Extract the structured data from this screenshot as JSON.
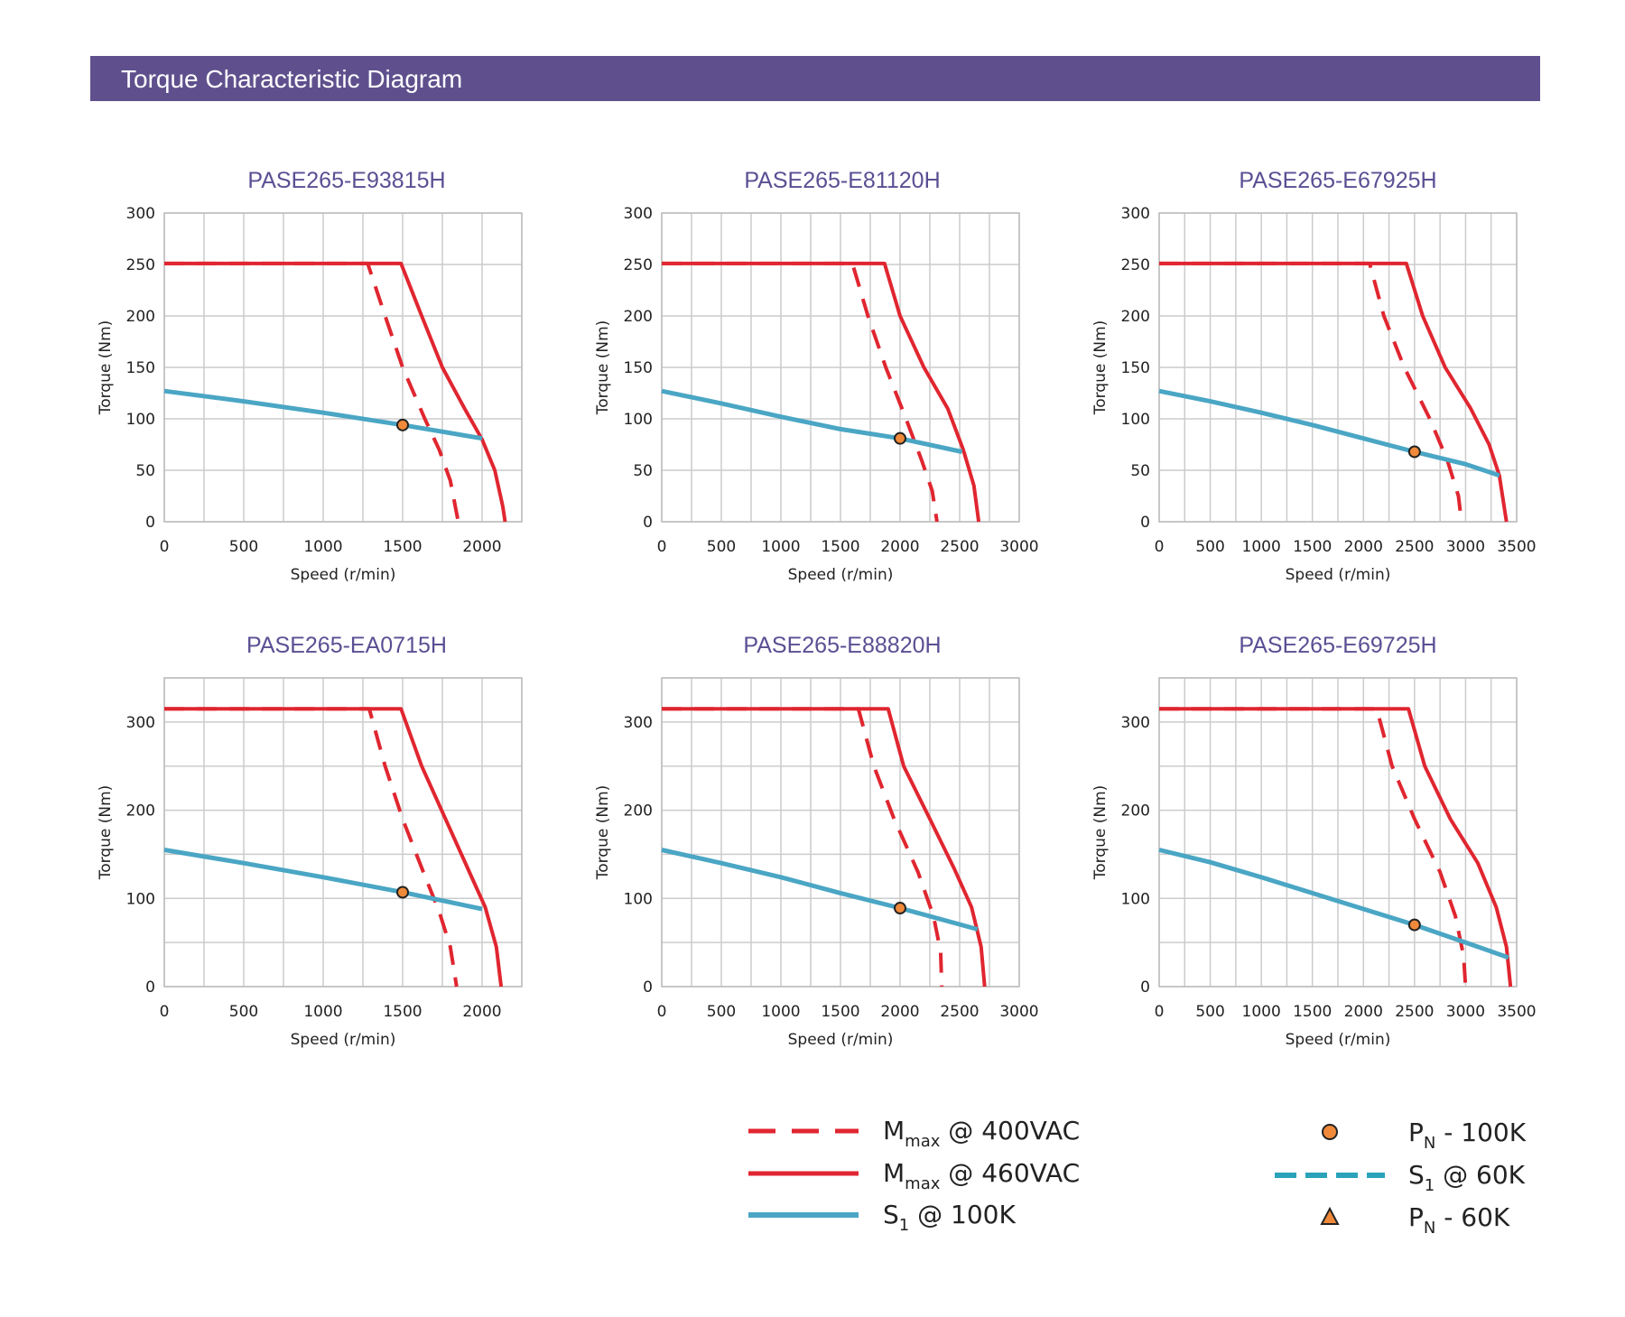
{
  "header": {
    "title": "Torque Characteristic Diagram"
  },
  "colors": {
    "header_bg": "#5f508d",
    "title": "#5a4f93",
    "mmax": "#e02630",
    "s1": "#4aa6c4",
    "grid": "#cccccc",
    "marker": "#f08a3a"
  },
  "chart_data": [
    {
      "type": "line",
      "title": "PASE265-E93815H",
      "xlabel": "Speed (r/min)",
      "ylabel": "Torque (Nm)",
      "xlim": [
        0,
        2250
      ],
      "ylim": [
        0,
        300
      ],
      "xticks": [
        0,
        500,
        1000,
        1500,
        2000
      ],
      "yticks": [
        0,
        50,
        100,
        150,
        200,
        250,
        300
      ],
      "series": [
        {
          "name": "Mmax @ 400VAC",
          "points": [
            [
              0,
              251
            ],
            [
              1280,
              251
            ],
            [
              1390,
              200
            ],
            [
              1500,
              150
            ],
            [
              1640,
              100
            ],
            [
              1730,
              70
            ],
            [
              1800,
              40
            ],
            [
              1850,
              0
            ]
          ]
        },
        {
          "name": "Mmax @ 460VAC",
          "points": [
            [
              0,
              251
            ],
            [
              1490,
              251
            ],
            [
              1620,
              200
            ],
            [
              1750,
              150
            ],
            [
              1890,
              110
            ],
            [
              2000,
              80
            ],
            [
              2080,
              50
            ],
            [
              2130,
              15
            ],
            [
              2145,
              0
            ]
          ]
        },
        {
          "name": "S1 @ 100K",
          "points": [
            [
              0,
              127
            ],
            [
              500,
              117
            ],
            [
              1000,
              106
            ],
            [
              1500,
              94
            ],
            [
              2000,
              81
            ]
          ]
        }
      ],
      "markers": [
        {
          "name": "PN - 100K",
          "x": 1500,
          "y": 94
        }
      ]
    },
    {
      "type": "line",
      "title": "PASE265-E81120H",
      "xlabel": "Speed (r/min)",
      "ylabel": "Torque (Nm)",
      "xlim": [
        0,
        3000
      ],
      "ylim": [
        0,
        300
      ],
      "xticks": [
        0,
        500,
        1000,
        1500,
        2000,
        2500,
        3000
      ],
      "yticks": [
        0,
        50,
        100,
        150,
        200,
        250,
        300
      ],
      "series": [
        {
          "name": "Mmax @ 400VAC",
          "points": [
            [
              0,
              251
            ],
            [
              1600,
              251
            ],
            [
              1730,
              200
            ],
            [
              1880,
              150
            ],
            [
              2050,
              100
            ],
            [
              2180,
              60
            ],
            [
              2270,
              30
            ],
            [
              2310,
              0
            ]
          ]
        },
        {
          "name": "Mmax @ 460VAC",
          "points": [
            [
              0,
              251
            ],
            [
              1870,
              251
            ],
            [
              2000,
              200
            ],
            [
              2200,
              150
            ],
            [
              2400,
              110
            ],
            [
              2530,
              70
            ],
            [
              2620,
              35
            ],
            [
              2660,
              0
            ]
          ]
        },
        {
          "name": "S1 @ 100K",
          "points": [
            [
              0,
              127
            ],
            [
              500,
              115
            ],
            [
              1000,
              102
            ],
            [
              1500,
              90
            ],
            [
              2000,
              81
            ],
            [
              2520,
              68
            ]
          ]
        }
      ],
      "markers": [
        {
          "name": "PN - 100K",
          "x": 2000,
          "y": 81
        }
      ]
    },
    {
      "type": "line",
      "title": "PASE265-E67925H",
      "xlabel": "Speed (r/min)",
      "ylabel": "Torque (Nm)",
      "xlim": [
        0,
        3500
      ],
      "ylim": [
        0,
        300
      ],
      "xticks": [
        0,
        500,
        1000,
        1500,
        2000,
        2500,
        3000,
        3500
      ],
      "yticks": [
        0,
        50,
        100,
        150,
        200,
        250,
        300
      ],
      "series": [
        {
          "name": "Mmax @ 400VAC",
          "points": [
            [
              0,
              251
            ],
            [
              2060,
              251
            ],
            [
              2200,
              200
            ],
            [
              2400,
              150
            ],
            [
              2650,
              100
            ],
            [
              2820,
              60
            ],
            [
              2930,
              25
            ],
            [
              2960,
              0
            ]
          ]
        },
        {
          "name": "Mmax @ 460VAC",
          "points": [
            [
              0,
              251
            ],
            [
              2420,
              251
            ],
            [
              2580,
              200
            ],
            [
              2800,
              150
            ],
            [
              3050,
              110
            ],
            [
              3230,
              75
            ],
            [
              3330,
              45
            ],
            [
              3400,
              0
            ]
          ]
        },
        {
          "name": "S1 @ 100K",
          "points": [
            [
              0,
              127
            ],
            [
              500,
              117
            ],
            [
              1000,
              106
            ],
            [
              1500,
              94
            ],
            [
              2000,
              81
            ],
            [
              2500,
              68
            ],
            [
              3000,
              56
            ],
            [
              3330,
              45
            ]
          ]
        }
      ],
      "markers": [
        {
          "name": "PN - 100K",
          "x": 2500,
          "y": 68
        }
      ]
    },
    {
      "type": "line",
      "title": "PASE265-EA0715H",
      "xlabel": "Speed (r/min)",
      "ylabel": "Torque (Nm)",
      "xlim": [
        0,
        2250
      ],
      "ylim": [
        0,
        350
      ],
      "xticks": [
        0,
        500,
        1000,
        1500,
        2000
      ],
      "yticks": [
        0,
        100,
        200,
        300
      ],
      "series": [
        {
          "name": "Mmax @ 400VAC",
          "points": [
            [
              0,
              315
            ],
            [
              1290,
              315
            ],
            [
              1390,
              250
            ],
            [
              1500,
              190
            ],
            [
              1630,
              130
            ],
            [
              1730,
              85
            ],
            [
              1800,
              45
            ],
            [
              1840,
              0
            ]
          ]
        },
        {
          "name": "Mmax @ 460VAC",
          "points": [
            [
              0,
              315
            ],
            [
              1490,
              315
            ],
            [
              1620,
              250
            ],
            [
              1770,
              190
            ],
            [
              1920,
              130
            ],
            [
              2020,
              90
            ],
            [
              2090,
              45
            ],
            [
              2120,
              0
            ]
          ]
        },
        {
          "name": "S1 @ 100K",
          "points": [
            [
              0,
              155
            ],
            [
              500,
              140
            ],
            [
              1000,
              124
            ],
            [
              1500,
              107
            ],
            [
              2000,
              88
            ]
          ]
        }
      ],
      "markers": [
        {
          "name": "PN - 100K",
          "x": 1500,
          "y": 107
        }
      ]
    },
    {
      "type": "line",
      "title": "PASE265-E88820H",
      "xlabel": "Speed (r/min)",
      "ylabel": "Torque (Nm)",
      "xlim": [
        0,
        3000
      ],
      "ylim": [
        0,
        350
      ],
      "xticks": [
        0,
        500,
        1000,
        1500,
        2000,
        2500,
        3000
      ],
      "yticks": [
        0,
        100,
        200,
        300
      ],
      "series": [
        {
          "name": "Mmax @ 400VAC",
          "points": [
            [
              0,
              315
            ],
            [
              1650,
              315
            ],
            [
              1780,
              250
            ],
            [
              1950,
              190
            ],
            [
              2150,
              130
            ],
            [
              2280,
              80
            ],
            [
              2340,
              40
            ],
            [
              2350,
              0
            ]
          ]
        },
        {
          "name": "Mmax @ 460VAC",
          "points": [
            [
              0,
              315
            ],
            [
              1900,
              315
            ],
            [
              2030,
              250
            ],
            [
              2250,
              190
            ],
            [
              2450,
              135
            ],
            [
              2600,
              90
            ],
            [
              2680,
              45
            ],
            [
              2710,
              0
            ]
          ]
        },
        {
          "name": "S1 @ 100K",
          "points": [
            [
              0,
              155
            ],
            [
              500,
              140
            ],
            [
              1000,
              124
            ],
            [
              1500,
              106
            ],
            [
              2000,
              89
            ],
            [
              2650,
              65
            ]
          ]
        }
      ],
      "markers": [
        {
          "name": "PN - 100K",
          "x": 2000,
          "y": 89
        }
      ]
    },
    {
      "type": "line",
      "title": "PASE265-E69725H",
      "xlabel": "Speed (r/min)",
      "ylabel": "Torque (Nm)",
      "xlim": [
        0,
        3500
      ],
      "ylim": [
        0,
        350
      ],
      "xticks": [
        0,
        500,
        1000,
        1500,
        2000,
        2500,
        3000,
        3500
      ],
      "yticks": [
        0,
        100,
        200,
        300
      ],
      "series": [
        {
          "name": "Mmax @ 400VAC",
          "points": [
            [
              0,
              315
            ],
            [
              2130,
              315
            ],
            [
              2280,
              250
            ],
            [
              2500,
              190
            ],
            [
              2750,
              130
            ],
            [
              2900,
              80
            ],
            [
              2980,
              35
            ],
            [
              3000,
              0
            ]
          ]
        },
        {
          "name": "Mmax @ 460VAC",
          "points": [
            [
              0,
              315
            ],
            [
              2440,
              315
            ],
            [
              2600,
              250
            ],
            [
              2850,
              190
            ],
            [
              3120,
              140
            ],
            [
              3300,
              90
            ],
            [
              3400,
              45
            ],
            [
              3440,
              0
            ]
          ]
        },
        {
          "name": "S1 @ 100K",
          "points": [
            [
              0,
              155
            ],
            [
              500,
              141
            ],
            [
              1000,
              124
            ],
            [
              1500,
              106
            ],
            [
              2000,
              88
            ],
            [
              2500,
              70
            ],
            [
              3000,
              50
            ],
            [
              3420,
              33
            ]
          ]
        }
      ],
      "markers": [
        {
          "name": "PN - 100K",
          "x": 2500,
          "y": 70
        }
      ]
    }
  ],
  "legend": {
    "mmax_main": "M",
    "mmax_sub": "max",
    "v400": " @ 400VAC",
    "v460": " @ 460VAC",
    "s_main": "S",
    "s_sub": "1",
    "s100": " @ 100K",
    "s60": " @ 60K",
    "pn_main": "P",
    "pn_sub": "N",
    "pn100": " - 100K",
    "pn60": " - 60K"
  }
}
